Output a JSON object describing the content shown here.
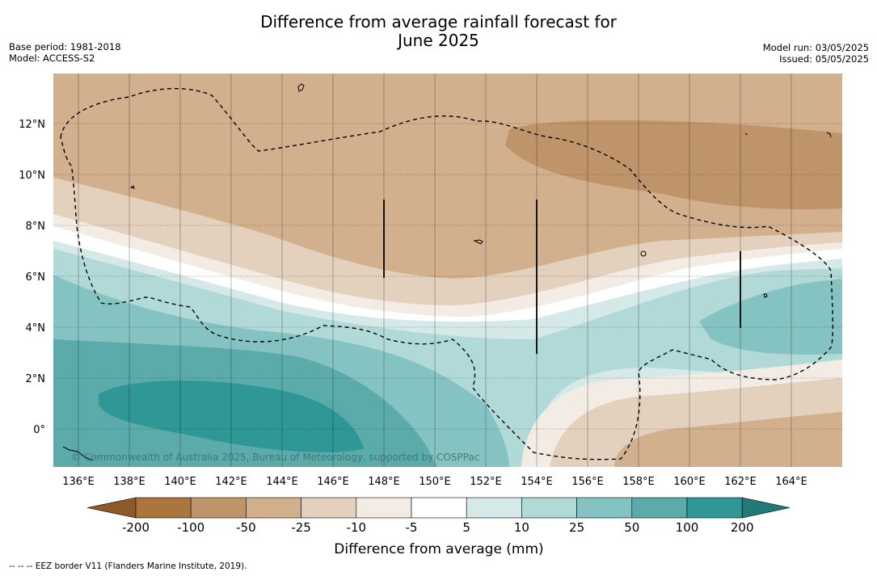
{
  "header": {
    "title_line1": "Difference from average rainfall forecast for",
    "title_line2": "June 2025",
    "base_period": "Base period: 1981-2018",
    "model": "Model: ACCESS-S2",
    "model_run": "Model run: 03/05/2025",
    "issued": "Issued: 05/05/2025"
  },
  "map": {
    "lat_ticks": [
      "12°N",
      "10°N",
      "8°N",
      "6°N",
      "4°N",
      "2°N",
      "0°"
    ],
    "lon_ticks": [
      "136°E",
      "138°E",
      "140°E",
      "142°E",
      "144°E",
      "146°E",
      "148°E",
      "150°E",
      "152°E",
      "154°E",
      "156°E",
      "158°E",
      "160°E",
      "162°E",
      "164°E"
    ],
    "copyright": "© Commonwealth of Australia 2025, Bureau of Meteorology, supported by COSPPac"
  },
  "colorbar": {
    "title": "Difference from average (mm)",
    "labels": [
      "-200",
      "-100",
      "-50",
      "-25",
      "-10",
      "-5",
      "5",
      "10",
      "25",
      "50",
      "100",
      "200"
    ],
    "colors": [
      "#8f5a2a",
      "#aa763e",
      "#c0946a",
      "#d2b08d",
      "#e3d0bd",
      "#f2ece4",
      "#ffffff",
      "#d5e9e8",
      "#b0d9d8",
      "#84c3c1",
      "#5babab",
      "#2f9896",
      "#1f7a78"
    ]
  },
  "legend": {
    "eez_note": "--  --  -- EEZ border V11 (Flanders Marine Institute, 2019)."
  }
}
